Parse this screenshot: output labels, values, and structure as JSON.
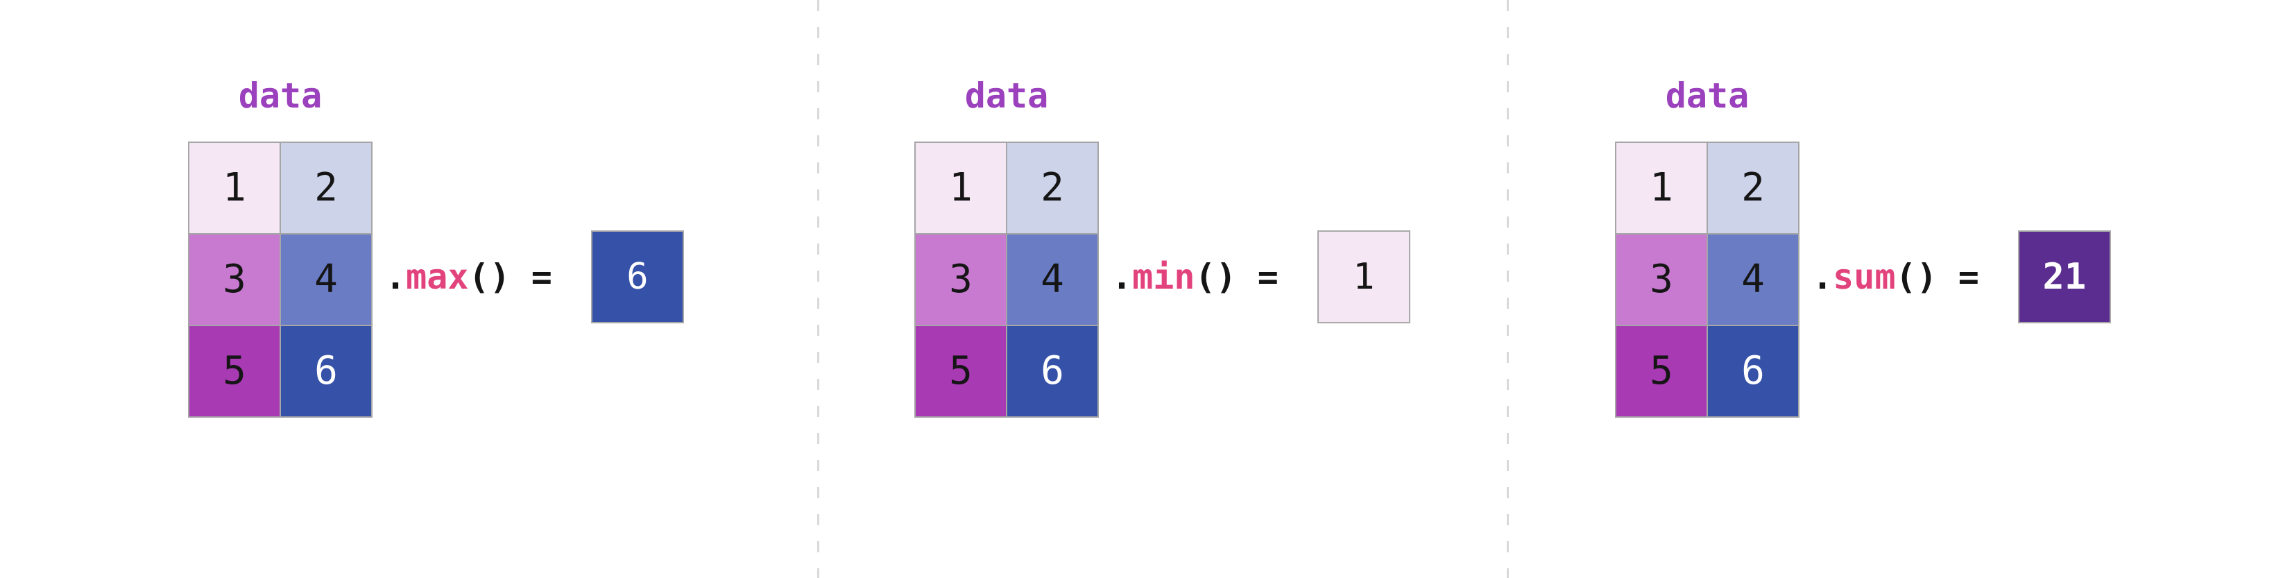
{
  "colors": {
    "background": "#ffffff",
    "separator": "#d9d9d9",
    "label_purple": "#9b41bd",
    "method_pink": "#e2437c",
    "code_black": "#151515",
    "grid_border": "#a6a6a6",
    "result_border": "#a9a9a9"
  },
  "table": {
    "label": "data",
    "columns": 2,
    "rows": 3,
    "cells": [
      {
        "value": "1",
        "bg": "#f5e8f4",
        "fg": "#151515"
      },
      {
        "value": "2",
        "bg": "#cdd3e9",
        "fg": "#151515"
      },
      {
        "value": "3",
        "bg": "#c87ad1",
        "fg": "#151515"
      },
      {
        "value": "4",
        "bg": "#697cc4",
        "fg": "#151515"
      },
      {
        "value": "5",
        "bg": "#a83ab3",
        "fg": "#151515"
      },
      {
        "value": "6",
        "bg": "#3551a8",
        "fg": "#ffffff"
      }
    ]
  },
  "panels": [
    {
      "label": "data",
      "code_prefix": ".",
      "method": "max",
      "code_suffix": "() =",
      "result": {
        "value": "6",
        "bg": "#3551a8",
        "fg": "#ffffff",
        "weight": "400"
      }
    },
    {
      "label": "data",
      "code_prefix": ".",
      "method": "min",
      "code_suffix": "() =",
      "result": {
        "value": "1",
        "bg": "#f5e8f4",
        "fg": "#151515",
        "weight": "400"
      }
    },
    {
      "label": "data",
      "code_prefix": ".",
      "method": "sum",
      "code_suffix": "() =",
      "result": {
        "value": "21",
        "bg": "#5c2d91",
        "fg": "#ffffff",
        "weight": "700"
      }
    }
  ]
}
